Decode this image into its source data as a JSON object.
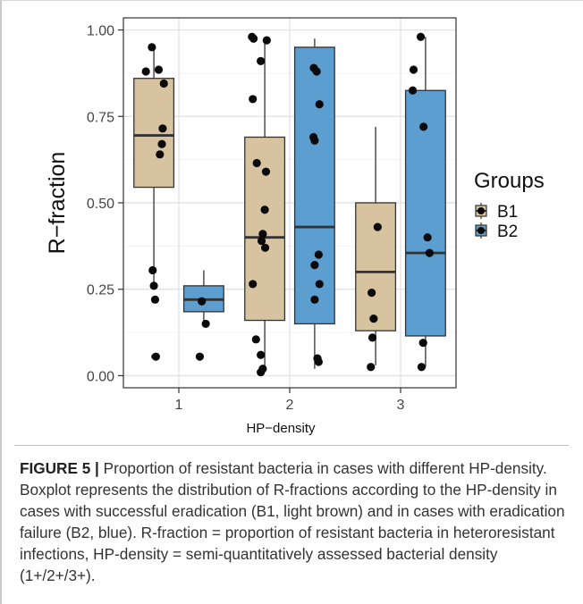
{
  "chart_data": {
    "type": "boxplot",
    "xlabel": "HP−density",
    "ylabel": "R−fraction",
    "categories": [
      "1",
      "2",
      "3"
    ],
    "yticks": [
      "0.00",
      "0.25",
      "0.50",
      "0.75",
      "1.00"
    ],
    "ylim": [
      -0.035,
      1.035
    ],
    "grid": true,
    "legend": {
      "title": "Groups",
      "position": "right"
    },
    "series": [
      {
        "name": "B1",
        "color": "#d8c3a0",
        "boxes": [
          {
            "x": "1",
            "min": 0.26,
            "q1": 0.545,
            "median": 0.695,
            "q3": 0.86,
            "max": 0.955,
            "outliers": [
              0.055
            ]
          },
          {
            "x": "2",
            "min": 0.01,
            "q1": 0.16,
            "median": 0.4,
            "q3": 0.69,
            "max": 0.98,
            "outliers": []
          },
          {
            "x": "3",
            "min": 0.03,
            "q1": 0.13,
            "median": 0.3,
            "q3": 0.5,
            "max": 0.72,
            "outliers": []
          }
        ],
        "points": [
          {
            "x": "1",
            "y": 0.95,
            "j": -0.05
          },
          {
            "x": "1",
            "y": 0.885,
            "j": 0.12
          },
          {
            "x": "1",
            "y": 0.88,
            "j": -0.2
          },
          {
            "x": "1",
            "y": 0.845,
            "j": 0.25
          },
          {
            "x": "1",
            "y": 0.715,
            "j": 0.22
          },
          {
            "x": "1",
            "y": 0.67,
            "j": 0.2
          },
          {
            "x": "1",
            "y": 0.64,
            "j": 0.15
          },
          {
            "x": "1",
            "y": 0.305,
            "j": -0.03
          },
          {
            "x": "1",
            "y": 0.26,
            "j": 0.0
          },
          {
            "x": "1",
            "y": 0.22,
            "j": 0.03
          },
          {
            "x": "1",
            "y": 0.055,
            "j": 0.05
          },
          {
            "x": "2",
            "y": 0.98,
            "j": -0.32
          },
          {
            "x": "2",
            "y": 0.975,
            "j": -0.28
          },
          {
            "x": "2",
            "y": 0.97,
            "j": 0.05
          },
          {
            "x": "2",
            "y": 0.91,
            "j": -0.1
          },
          {
            "x": "2",
            "y": 0.8,
            "j": -0.3
          },
          {
            "x": "2",
            "y": 0.615,
            "j": -0.2
          },
          {
            "x": "2",
            "y": 0.59,
            "j": 0.03
          },
          {
            "x": "2",
            "y": 0.48,
            "j": 0.0
          },
          {
            "x": "2",
            "y": 0.41,
            "j": -0.05
          },
          {
            "x": "2",
            "y": 0.39,
            "j": -0.08
          },
          {
            "x": "2",
            "y": 0.37,
            "j": 0.01
          },
          {
            "x": "2",
            "y": 0.265,
            "j": -0.3
          },
          {
            "x": "2",
            "y": 0.105,
            "j": -0.22
          },
          {
            "x": "2",
            "y": 0.06,
            "j": -0.1
          },
          {
            "x": "2",
            "y": 0.02,
            "j": -0.05
          },
          {
            "x": "2",
            "y": 0.01,
            "j": -0.1
          },
          {
            "x": "3",
            "y": 0.43,
            "j": 0.05
          },
          {
            "x": "3",
            "y": 0.24,
            "j": -0.1
          },
          {
            "x": "3",
            "y": 0.165,
            "j": -0.05
          },
          {
            "x": "3",
            "y": 0.11,
            "j": -0.08
          },
          {
            "x": "3",
            "y": 0.025,
            "j": -0.12
          }
        ]
      },
      {
        "name": "B2",
        "color": "#5b9ecf",
        "boxes": [
          {
            "x": "1",
            "min": 0.15,
            "q1": 0.185,
            "median": 0.22,
            "q3": 0.26,
            "max": 0.305,
            "outliers": []
          },
          {
            "x": "2",
            "min": 0.02,
            "q1": 0.15,
            "median": 0.43,
            "q3": 0.95,
            "max": 0.975,
            "outliers": []
          },
          {
            "x": "3",
            "min": 0.025,
            "q1": 0.115,
            "median": 0.355,
            "q3": 0.825,
            "max": 0.98,
            "outliers": []
          }
        ],
        "points": [
          {
            "x": "1",
            "y": 0.215,
            "j": -0.05
          },
          {
            "x": "1",
            "y": 0.15,
            "j": 0.05
          },
          {
            "x": "1",
            "y": 0.055,
            "j": -0.1
          },
          {
            "x": "2",
            "y": 0.89,
            "j": -0.02
          },
          {
            "x": "2",
            "y": 0.88,
            "j": 0.05
          },
          {
            "x": "2",
            "y": 0.785,
            "j": 0.12
          },
          {
            "x": "2",
            "y": 0.69,
            "j": -0.03
          },
          {
            "x": "2",
            "y": 0.68,
            "j": 0.0
          },
          {
            "x": "2",
            "y": 0.35,
            "j": 0.1
          },
          {
            "x": "2",
            "y": 0.32,
            "j": 0.0
          },
          {
            "x": "2",
            "y": 0.265,
            "j": 0.12
          },
          {
            "x": "2",
            "y": 0.22,
            "j": 0.0
          },
          {
            "x": "2",
            "y": 0.05,
            "j": 0.07
          },
          {
            "x": "2",
            "y": 0.04,
            "j": 0.1
          },
          {
            "x": "3",
            "y": 0.98,
            "j": -0.12
          },
          {
            "x": "3",
            "y": 0.885,
            "j": -0.3
          },
          {
            "x": "3",
            "y": 0.825,
            "j": -0.32
          },
          {
            "x": "3",
            "y": 0.72,
            "j": -0.05
          },
          {
            "x": "3",
            "y": 0.4,
            "j": 0.05
          },
          {
            "x": "3",
            "y": 0.355,
            "j": 0.1
          },
          {
            "x": "3",
            "y": 0.095,
            "j": -0.06
          },
          {
            "x": "3",
            "y": 0.025,
            "j": -0.1
          }
        ]
      }
    ]
  },
  "caption": {
    "label": "FIGURE 5 |",
    "text": " Proportion of resistant bacteria in cases with different HP-density. Boxplot represents the distribution of R-fractions according to the HP-density in cases with successful eradication (B1, light brown) and in cases with eradication failure (B2, blue). R-fraction = proportion of resistant bacteria in heteroresistant infections, HP-density = semi-quantitatively assessed bacterial density (1+/2+/3+)."
  }
}
